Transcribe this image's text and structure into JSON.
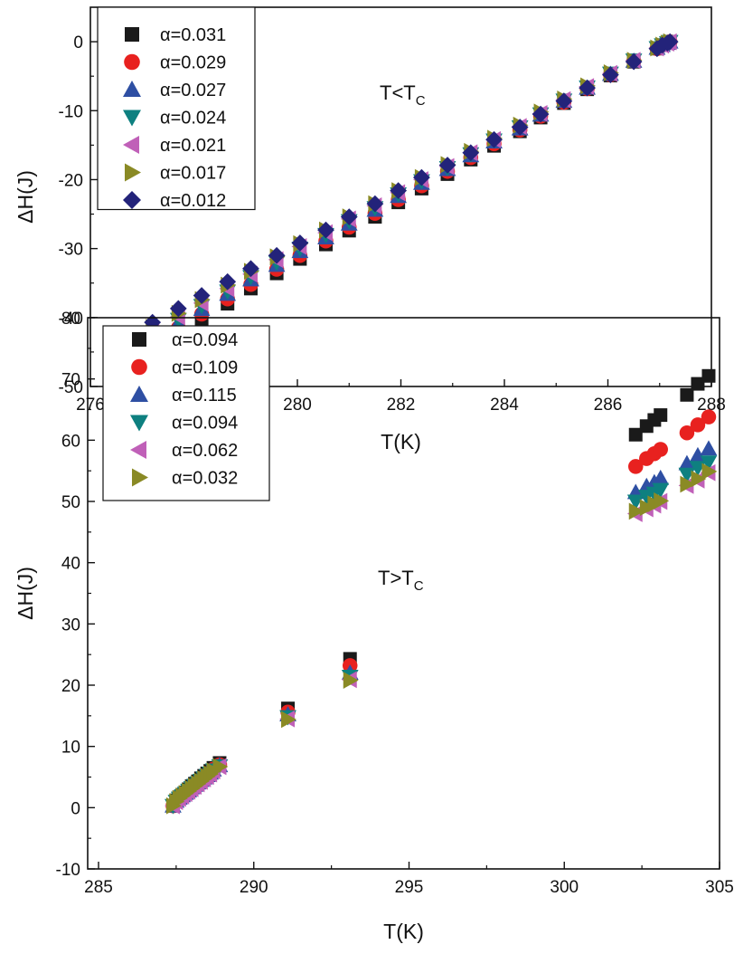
{
  "chart_data": [
    {
      "type": "scatter",
      "xlabel": "T(K)",
      "ylabel": "ΔH(J)",
      "annotation": {
        "main": "T<T",
        "sub": "C"
      },
      "xlim": [
        276,
        288
      ],
      "ylim": [
        -50,
        5
      ],
      "xticks": [
        "276",
        "278",
        "280",
        "282",
        "284",
        "286",
        "288"
      ],
      "xtick_values": [
        276,
        278,
        280,
        282,
        284,
        286,
        288
      ],
      "yticks": [
        "0",
        "-10",
        "-20",
        "-30",
        "-40",
        "-50"
      ],
      "ytick_values": [
        0,
        -10,
        -20,
        -30,
        -40,
        -50
      ],
      "legend_position": "top-left",
      "x": [
        277.2,
        277.7,
        278.15,
        278.65,
        279.1,
        279.6,
        280.05,
        280.55,
        281.0,
        281.5,
        281.95,
        282.4,
        282.9,
        283.35,
        283.8,
        284.3,
        284.7,
        285.15,
        285.6,
        286.05,
        286.5,
        286.95,
        287.05,
        287.15,
        287.2
      ],
      "series": [
        {
          "name": "α=0.031",
          "marker": "square",
          "color": "#1a1a1a",
          "values": [
            -44.3,
            -42.3,
            -40.2,
            -38.0,
            -35.8,
            -33.6,
            -31.5,
            -29.4,
            -27.4,
            -25.4,
            -23.3,
            -21.3,
            -19.2,
            -17.1,
            -15.1,
            -13.0,
            -11.0,
            -8.9,
            -6.9,
            -4.9,
            -2.9,
            -1.0,
            -0.5,
            -0.2,
            0.0
          ]
        },
        {
          "name": "α=0.029",
          "marker": "circle",
          "color": "#e8211f",
          "values": [
            -43.5,
            -41.5,
            -39.5,
            -37.3,
            -35.2,
            -33.0,
            -31.0,
            -28.9,
            -26.9,
            -24.9,
            -22.9,
            -20.9,
            -18.8,
            -16.8,
            -14.8,
            -12.8,
            -10.8,
            -8.8,
            -6.8,
            -4.8,
            -2.8,
            -1.0,
            -0.5,
            -0.2,
            0.0
          ]
        },
        {
          "name": "α=0.027",
          "marker": "triangle-up",
          "color": "#2e4fa3",
          "values": [
            -42.8,
            -40.8,
            -38.8,
            -36.6,
            -34.5,
            -32.4,
            -30.4,
            -28.4,
            -26.4,
            -24.4,
            -22.4,
            -20.5,
            -18.5,
            -16.5,
            -14.5,
            -12.6,
            -10.6,
            -8.6,
            -6.7,
            -4.7,
            -2.8,
            -0.9,
            -0.5,
            -0.2,
            0.0
          ]
        },
        {
          "name": "α=0.024",
          "marker": "triangle-down",
          "color": "#0e8080",
          "values": [
            -42.3,
            -40.3,
            -38.3,
            -36.2,
            -34.1,
            -32.0,
            -30.0,
            -28.0,
            -26.0,
            -24.1,
            -22.1,
            -20.2,
            -18.3,
            -16.3,
            -14.3,
            -12.4,
            -10.5,
            -8.5,
            -6.6,
            -4.6,
            -2.7,
            -0.9,
            -0.5,
            -0.2,
            0.0
          ]
        },
        {
          "name": "α=0.021",
          "marker": "triangle-left",
          "color": "#c060b8",
          "values": [
            -41.9,
            -39.9,
            -37.9,
            -35.8,
            -33.7,
            -31.6,
            -29.7,
            -27.7,
            -25.7,
            -23.8,
            -21.9,
            -20.0,
            -18.1,
            -16.1,
            -14.2,
            -12.3,
            -10.4,
            -8.4,
            -6.5,
            -4.6,
            -2.7,
            -0.9,
            -0.5,
            -0.2,
            0.0
          ]
        },
        {
          "name": "α=0.017",
          "marker": "triangle-right",
          "color": "#8a8a25",
          "values": [
            -41.4,
            -39.4,
            -37.4,
            -35.3,
            -33.3,
            -31.2,
            -29.3,
            -27.3,
            -25.4,
            -23.5,
            -21.6,
            -19.7,
            -17.8,
            -15.9,
            -14.0,
            -12.1,
            -10.2,
            -8.3,
            -6.4,
            -4.5,
            -2.7,
            -0.9,
            -0.5,
            -0.2,
            0.0
          ]
        },
        {
          "name": "α=0.012",
          "marker": "diamond",
          "color": "#23237a",
          "values": [
            -40.7,
            -38.7,
            -36.8,
            -34.8,
            -32.9,
            -31.0,
            -29.2,
            -27.3,
            -25.4,
            -23.5,
            -21.6,
            -19.7,
            -17.9,
            -16.1,
            -14.2,
            -12.4,
            -10.5,
            -8.6,
            -6.7,
            -4.8,
            -2.9,
            -1.0,
            -0.5,
            -0.2,
            0.0
          ]
        }
      ]
    },
    {
      "type": "scatter",
      "xlabel": "T(K)",
      "ylabel": "ΔH(J)",
      "annotation": {
        "main": "T>T",
        "sub": "C"
      },
      "xlim": [
        285,
        308
      ],
      "ylim": [
        -10,
        80
      ],
      "xticks": [
        "285",
        "290",
        "295",
        "300",
        "305"
      ],
      "xtick_values": [
        285,
        290,
        295,
        300,
        305
      ],
      "yticks": [
        "-10",
        "0",
        "10",
        "20",
        "30",
        "40",
        "50",
        "60",
        "70",
        "80"
      ],
      "ytick_values": [
        -10,
        0,
        10,
        20,
        30,
        40,
        50,
        60,
        70,
        80
      ],
      "legend_position": "top-left",
      "x": [
        287.4,
        287.5,
        287.6,
        287.7,
        287.8,
        287.9,
        288.0,
        288.1,
        288.2,
        288.3,
        288.4,
        288.5,
        288.6,
        288.7,
        288.9,
        291.1,
        293.1,
        302.3,
        302.65,
        302.9,
        303.1,
        303.95,
        304.3,
        304.65,
        305.55
      ],
      "series": [
        {
          "name": "α=0.094",
          "marker": "square",
          "color": "#1a1a1a",
          "values": [
            0.3,
            1.2,
            1.7,
            2.1,
            2.5,
            3.0,
            3.5,
            3.9,
            4.3,
            4.8,
            5.2,
            5.6,
            6.0,
            6.5,
            7.3,
            16.2,
            24.3,
            60.9,
            62.3,
            63.3,
            64.1,
            67.4,
            69.2,
            70.5,
            74.1
          ]
        },
        {
          "name": "α=0.109",
          "marker": "circle",
          "color": "#e8211f",
          "values": [
            0.3,
            1.1,
            1.6,
            2.0,
            2.4,
            2.9,
            3.4,
            3.8,
            4.2,
            4.6,
            5.0,
            5.4,
            5.8,
            6.3,
            7.0,
            15.6,
            23.2,
            55.7,
            57.0,
            57.8,
            58.5,
            61.2,
            62.5,
            63.8,
            67.0
          ]
        },
        {
          "name": "α=0.115",
          "marker": "triangle-up",
          "color": "#2e4fa3",
          "values": [
            0.3,
            1.1,
            1.6,
            2.0,
            2.4,
            2.8,
            3.3,
            3.7,
            4.1,
            4.5,
            4.9,
            5.3,
            5.7,
            6.2,
            6.9,
            15.2,
            22.0,
            51.5,
            52.5,
            53.1,
            53.8,
            56.2,
            57.5,
            58.6,
            61.0
          ]
        },
        {
          "name": "α=0.094",
          "marker": "triangle-down",
          "color": "#0e8080",
          "values": [
            0.3,
            1.0,
            1.5,
            1.9,
            2.3,
            2.8,
            3.2,
            3.6,
            4.0,
            4.4,
            4.8,
            5.2,
            5.6,
            6.1,
            6.8,
            14.8,
            21.4,
            50.0,
            50.8,
            51.3,
            51.9,
            54.4,
            55.5,
            56.4,
            59.7
          ]
        },
        {
          "name": "α=0.062",
          "marker": "triangle-left",
          "color": "#c060b8",
          "values": [
            0.3,
            1.0,
            1.5,
            1.9,
            2.3,
            2.7,
            3.1,
            3.5,
            3.9,
            4.3,
            4.7,
            5.1,
            5.5,
            6.0,
            6.7,
            14.5,
            20.9,
            48.0,
            48.8,
            49.4,
            50.0,
            52.6,
            53.5,
            54.7,
            57.0
          ]
        },
        {
          "name": "α=0.032",
          "marker": "triangle-right",
          "color": "#8a8a25",
          "values": [
            0.3,
            1.0,
            1.5,
            1.9,
            2.3,
            2.7,
            3.1,
            3.5,
            3.9,
            4.3,
            4.7,
            5.1,
            5.5,
            6.0,
            6.7,
            14.4,
            20.8,
            48.4,
            49.0,
            49.6,
            50.1,
            52.8,
            53.7,
            54.9,
            57.2
          ]
        }
      ]
    }
  ]
}
